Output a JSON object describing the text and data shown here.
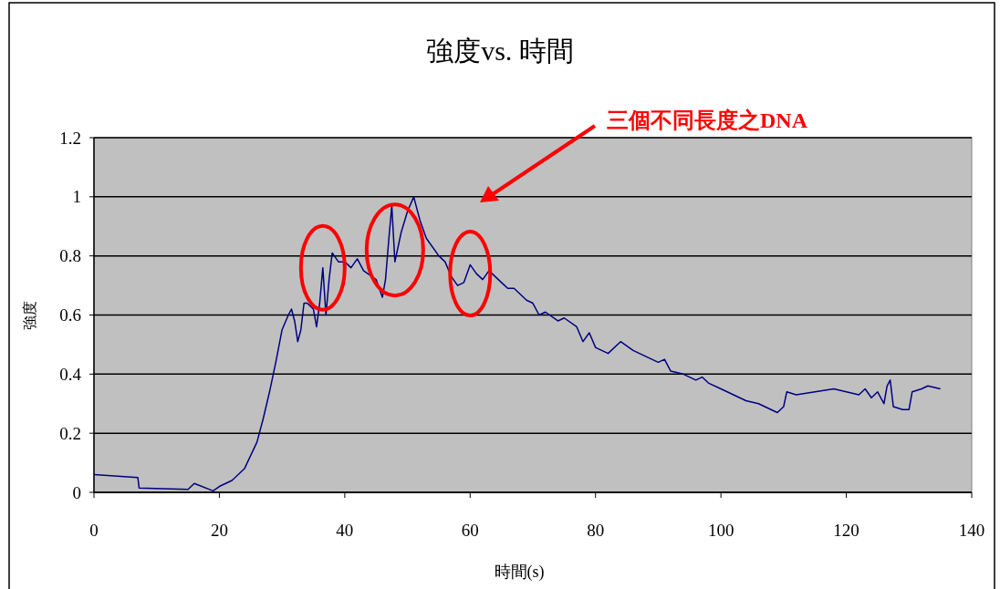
{
  "chart_data": {
    "type": "line",
    "title": "強度vs. 時間",
    "xlabel": "時間(s)",
    "ylabel": "強度",
    "annotations": [
      "三個不同長度之DNA"
    ],
    "xlim": [
      0,
      140
    ],
    "xticks": [
      0,
      20,
      40,
      60,
      80,
      100,
      120,
      140
    ],
    "ylim": [
      0,
      1.2
    ],
    "yticks": [
      0,
      0.2,
      0.4,
      0.6,
      0.8,
      1,
      1.2
    ],
    "grid": "y",
    "series": [
      {
        "color": "#000080",
        "x": [
          0,
          7,
          7.2,
          15,
          16,
          19,
          20,
          22,
          24,
          26,
          27,
          28,
          29,
          30,
          31,
          31.5,
          32,
          32.5,
          33,
          33.5,
          34,
          35,
          35.5,
          36,
          36.5,
          37,
          37.5,
          38,
          39,
          40,
          41,
          42,
          43,
          45,
          46,
          46.5,
          47,
          47.5,
          48,
          49,
          50,
          51,
          52,
          53,
          55,
          56,
          57,
          58,
          59,
          60,
          61,
          62,
          63,
          65,
          66,
          67,
          68,
          69,
          70,
          71,
          72,
          74,
          75,
          77,
          78,
          79,
          80,
          82,
          84,
          86,
          88,
          90,
          91,
          92,
          94,
          96,
          97,
          98,
          100,
          102,
          104,
          106,
          108,
          109,
          110,
          110.5,
          112,
          115,
          118,
          120,
          122,
          123,
          124,
          125,
          126,
          126.5,
          127,
          127.5,
          129,
          130,
          130.5,
          132,
          133,
          135
        ],
        "values": [
          0.06,
          0.05,
          0.015,
          0.01,
          0.03,
          0.005,
          0.02,
          0.04,
          0.08,
          0.17,
          0.25,
          0.34,
          0.44,
          0.55,
          0.6,
          0.62,
          0.58,
          0.51,
          0.55,
          0.64,
          0.64,
          0.62,
          0.56,
          0.64,
          0.76,
          0.6,
          0.72,
          0.81,
          0.78,
          0.78,
          0.76,
          0.79,
          0.75,
          0.72,
          0.66,
          0.72,
          0.85,
          0.97,
          0.78,
          0.88,
          0.95,
          1.0,
          0.92,
          0.86,
          0.8,
          0.78,
          0.73,
          0.7,
          0.71,
          0.77,
          0.74,
          0.72,
          0.75,
          0.71,
          0.69,
          0.69,
          0.67,
          0.65,
          0.64,
          0.6,
          0.61,
          0.58,
          0.59,
          0.56,
          0.51,
          0.54,
          0.49,
          0.47,
          0.51,
          0.48,
          0.46,
          0.44,
          0.45,
          0.41,
          0.4,
          0.38,
          0.39,
          0.37,
          0.35,
          0.33,
          0.31,
          0.3,
          0.28,
          0.27,
          0.29,
          0.34,
          0.33,
          0.34,
          0.35,
          0.34,
          0.33,
          0.35,
          0.32,
          0.34,
          0.3,
          0.36,
          0.38,
          0.29,
          0.28,
          0.28,
          0.34,
          0.35,
          0.36,
          0.35
        ]
      }
    ]
  }
}
